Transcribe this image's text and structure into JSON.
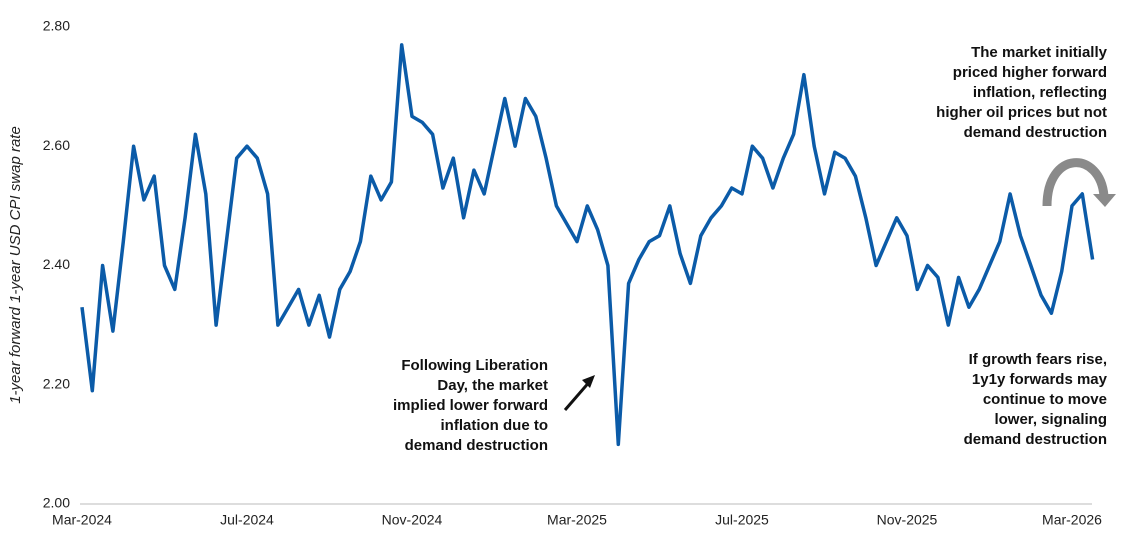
{
  "chart_data": {
    "type": "line",
    "y_label": "1-year forward 1-year USD CPI swap rate",
    "categories": [
      "Mar-2024",
      null,
      null,
      null,
      null,
      null,
      null,
      null,
      null,
      null,
      null,
      null,
      null,
      null,
      null,
      null,
      "Jul-2024",
      null,
      null,
      null,
      null,
      null,
      null,
      null,
      null,
      null,
      null,
      null,
      null,
      null,
      null,
      null,
      "Nov-2024",
      null,
      null,
      null,
      null,
      null,
      null,
      null,
      null,
      null,
      null,
      null,
      null,
      null,
      null,
      null,
      "Mar-2025",
      null,
      null,
      null,
      null,
      null,
      null,
      null,
      null,
      null,
      null,
      null,
      null,
      null,
      null,
      null,
      "Jul-2025",
      null,
      null,
      null,
      null,
      null,
      null,
      null,
      null,
      null,
      null,
      null,
      null,
      null,
      null,
      null,
      "Nov-2025",
      null,
      null,
      null,
      null,
      null,
      null,
      null,
      null,
      null,
      null,
      null,
      null,
      null,
      null,
      null,
      "Mar-2026",
      null,
      null
    ],
    "series": [
      {
        "name": "1y1y USD CPI swap",
        "color": "#0b5ba8",
        "values": [
          2.33,
          2.19,
          2.4,
          2.29,
          2.44,
          2.6,
          2.51,
          2.55,
          2.4,
          2.36,
          2.48,
          2.62,
          2.52,
          2.3,
          2.44,
          2.58,
          2.6,
          2.58,
          2.52,
          2.3,
          2.33,
          2.36,
          2.3,
          2.35,
          2.28,
          2.36,
          2.39,
          2.44,
          2.55,
          2.51,
          2.54,
          2.77,
          2.65,
          2.64,
          2.62,
          2.53,
          2.58,
          2.48,
          2.56,
          2.52,
          2.6,
          2.68,
          2.6,
          2.68,
          2.65,
          2.58,
          2.5,
          2.47,
          2.44,
          2.5,
          2.46,
          2.4,
          2.1,
          2.37,
          2.41,
          2.44,
          2.45,
          2.5,
          2.42,
          2.37,
          2.45,
          2.48,
          2.5,
          2.53,
          2.52,
          2.6,
          2.58,
          2.53,
          2.58,
          2.62,
          2.72,
          2.6,
          2.52,
          2.59,
          2.58,
          2.55,
          2.48,
          2.4,
          2.44,
          2.48,
          2.45,
          2.36,
          2.4,
          2.38,
          2.3,
          2.38,
          2.33,
          2.36,
          2.4,
          2.44,
          2.52,
          2.45,
          2.4,
          2.35,
          2.32,
          2.39,
          2.5,
          2.52,
          2.41
        ]
      }
    ],
    "ylim": [
      2.0,
      2.8
    ],
    "yticks": [
      {
        "value": 2.0,
        "label": "2.00"
      },
      {
        "value": 2.2,
        "label": "2.20"
      },
      {
        "value": 2.4,
        "label": "2.40"
      },
      {
        "value": 2.6,
        "label": "2.60"
      },
      {
        "value": 2.8,
        "label": "2.80"
      }
    ],
    "grid": false,
    "annotations": [
      {
        "lines": [
          "Following Liberation",
          "Day, the market",
          "implied lower forward",
          "inflation due to",
          "demand destruction"
        ]
      },
      {
        "lines": [
          "The market initially",
          "priced higher forward",
          "inflation, reflecting",
          "higher oil prices but not",
          "demand destruction"
        ]
      },
      {
        "lines": [
          "If growth fears rise,",
          "1y1y forwards may",
          "continue to move",
          "lower, signaling",
          "demand destruction"
        ]
      }
    ]
  }
}
